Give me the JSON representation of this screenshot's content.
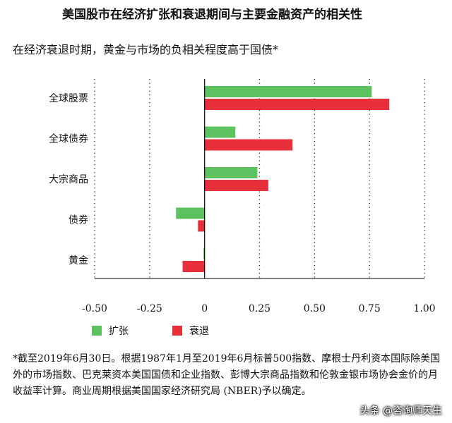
{
  "title": "美国股市在经济扩张和衰退期间与主要金融资产的相关性",
  "subtitle": "在经济衰退时期，黄金与市场的负相关程度高于国债*",
  "colors": {
    "expansion": "#5cc15f",
    "recession": "#e8303a"
  },
  "chart_data": {
    "type": "bar",
    "orientation": "horizontal",
    "categories": [
      "全球股票",
      "全球债券",
      "大宗商品",
      "债券",
      "黄金"
    ],
    "series": [
      {
        "name": "扩张",
        "values": [
          0.76,
          0.14,
          0.24,
          -0.13,
          -0.005
        ]
      },
      {
        "name": "衰退",
        "values": [
          0.84,
          0.4,
          0.29,
          -0.03,
          -0.1
        ]
      }
    ],
    "xlim": [
      -0.5,
      1.0
    ],
    "xticks": [
      "-0.50",
      "-0.25",
      "0",
      "0.25",
      "0.50",
      "0.75",
      "1.00"
    ],
    "xtick_values": [
      -0.5,
      -0.25,
      0,
      0.25,
      0.5,
      0.75,
      1.0
    ],
    "grid": "vertical-dotted",
    "legend": "bottom-left"
  },
  "footnote": "*截至2019年6月30日。根据1987年1月至2019年6月标普500指数、摩根士丹利资本国际除美国外的市场指数、巴克莱资本美国国债和企业指数、彭博大宗商品指数和伦敦金银市场协会金价的月收益率计算。商业周期根据美国国家经济研究局 (NBER)予以确定。",
  "watermark": "头条 @咨询师天生"
}
